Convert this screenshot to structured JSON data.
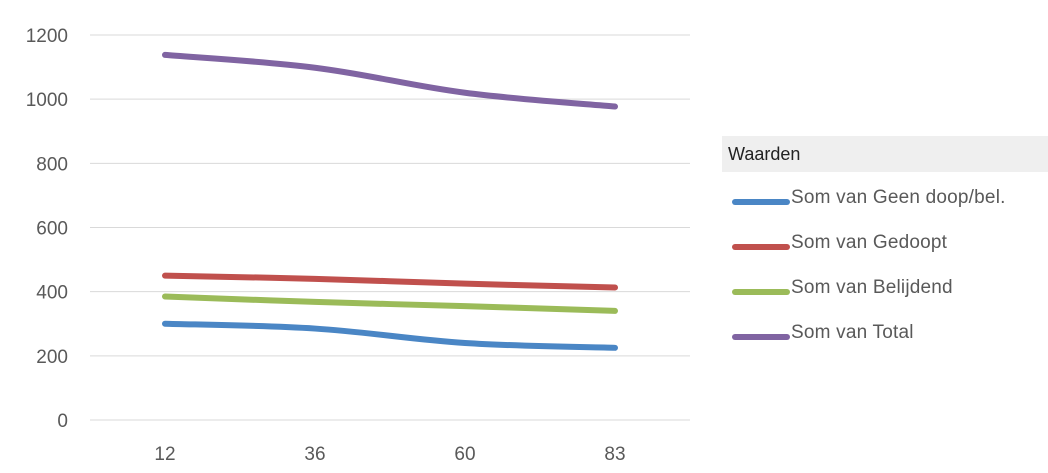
{
  "chart_data": {
    "type": "line",
    "x": [
      "12",
      "36",
      "60",
      "83"
    ],
    "ylim": [
      0,
      1200
    ],
    "yticks": [
      "0",
      "200",
      "400",
      "600",
      "800",
      "1000",
      "1200"
    ],
    "grid": true,
    "legend_placement": "right",
    "series": [
      {
        "name": "Som van Geen doop/bel.",
        "values": [
          300,
          285,
          240,
          225
        ],
        "color": "#4a86c5"
      },
      {
        "name": "Som van Gedoopt",
        "values": [
          450,
          440,
          425,
          413
        ],
        "color": "#c0504d"
      },
      {
        "name": "Som van Belijdend",
        "values": [
          385,
          368,
          355,
          340
        ],
        "color": "#9bbb59"
      },
      {
        "name": "Som van Total",
        "values": [
          1138,
          1098,
          1020,
          977
        ],
        "color": "#8064a2"
      }
    ]
  },
  "legend": {
    "title": "Waarden",
    "items": [
      {
        "label": "Som van Geen doop/bel.",
        "color": "#4a86c5"
      },
      {
        "label": "Som van Gedoopt",
        "color": "#c0504d"
      },
      {
        "label": "Som van Belijdend",
        "color": "#9bbb59"
      },
      {
        "label": "Som van Total",
        "color": "#8064a2"
      }
    ]
  }
}
